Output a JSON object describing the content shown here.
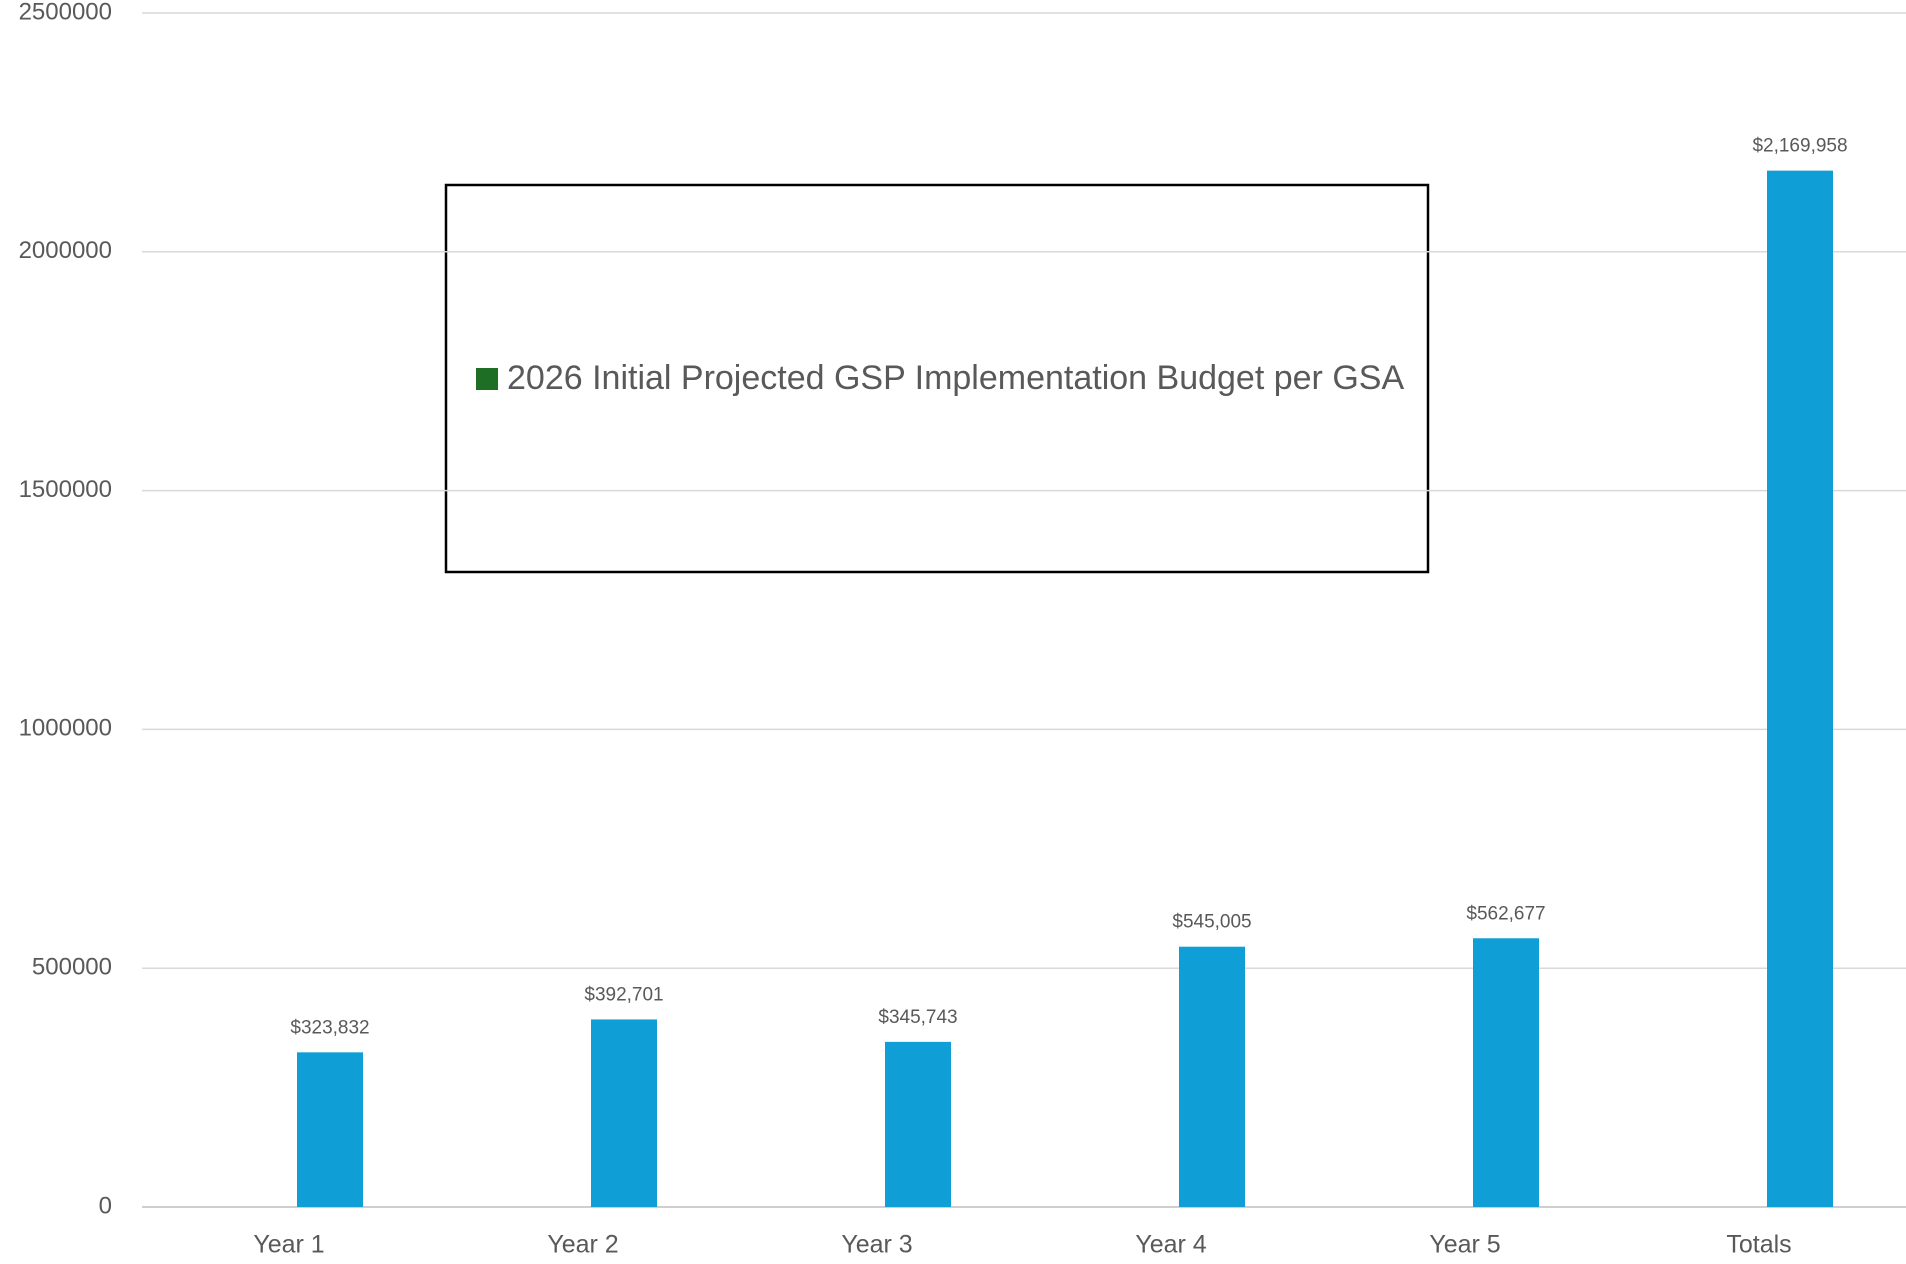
{
  "chart_data": {
    "type": "bar",
    "categories": [
      "Year 1",
      "Year 2",
      "Year 3",
      "Year 4",
      "Year 5",
      "Totals"
    ],
    "series": [
      {
        "name": "2026 Initial Projected GSP Implementation Budget per GSA",
        "color": "#0f9ed5",
        "values": [
          323832,
          392701,
          345743,
          545005,
          562677,
          2169958
        ],
        "value_labels": [
          "$323,832",
          "$392,701",
          "$345,743",
          "$545,005",
          "$562,677",
          "$2,169,958"
        ]
      }
    ],
    "legend_color": "#1e6e26",
    "ylim": [
      0,
      2500000
    ],
    "yticks": [
      0,
      500000,
      1000000,
      1500000,
      2000000,
      2500000
    ],
    "grid": true
  }
}
